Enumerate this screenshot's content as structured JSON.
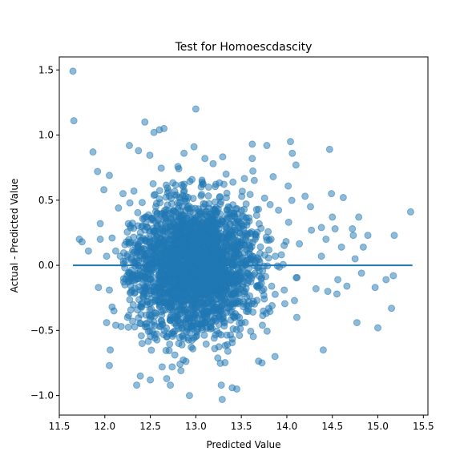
{
  "chart_data": {
    "type": "scatter",
    "title": "Test for Homoescdascity",
    "xlabel": "Predicted Value",
    "ylabel": "Actual - Predicted Value",
    "xlim": [
      11.5,
      15.55
    ],
    "ylim": [
      -1.15,
      1.6
    ],
    "x_ticks": [
      "11.5",
      "12.0",
      "12.5",
      "13.0",
      "13.5",
      "14.0",
      "14.5",
      "15.0",
      "15.5"
    ],
    "y_ticks": [
      "−1.0",
      "−0.5",
      "0.0",
      "0.5",
      "1.0",
      "1.5"
    ],
    "grid": false,
    "legend": "none",
    "point_color": "#1f77b4",
    "point_alpha": 0.5,
    "series": [
      {
        "kind": "scatter",
        "points": [
          [
            11.65,
            1.49
          ],
          [
            11.66,
            1.11
          ],
          [
            11.72,
            0.2
          ],
          [
            11.75,
            0.18
          ],
          [
            11.82,
            0.11
          ],
          [
            11.87,
            0.87
          ],
          [
            11.92,
            0.72
          ],
          [
            11.93,
            -0.17
          ],
          [
            11.95,
            0.32
          ],
          [
            11.95,
            0.2
          ],
          [
            11.99,
            0.58
          ],
          [
            12.02,
            0.07
          ],
          [
            12.05,
            0.69
          ],
          [
            12.05,
            -0.19
          ],
          [
            12.08,
            0.21
          ],
          [
            12.02,
            -0.44
          ],
          [
            12.06,
            -0.65
          ],
          [
            12.05,
            -0.77
          ],
          [
            12.08,
            -0.32
          ],
          [
            12.1,
            -0.35
          ],
          [
            12.12,
            -0.46
          ],
          [
            12.12,
            0.11
          ],
          [
            12.15,
            0.44
          ],
          [
            12.17,
            0.07
          ],
          [
            12.18,
            -0.47
          ],
          [
            12.2,
            0.55
          ],
          [
            12.22,
            -0.15
          ],
          [
            12.25,
            -0.4
          ],
          [
            12.27,
            0.92
          ],
          [
            12.32,
            0.57
          ],
          [
            12.35,
            -0.92
          ],
          [
            12.37,
            0.88
          ],
          [
            12.39,
            -0.85
          ],
          [
            12.41,
            -0.6
          ],
          [
            12.44,
            1.1
          ],
          [
            12.5,
            -0.88
          ],
          [
            12.54,
            1.02
          ],
          [
            12.6,
            1.04
          ],
          [
            12.63,
            -0.78
          ],
          [
            12.65,
            1.05
          ],
          [
            12.68,
            -0.87
          ],
          [
            12.72,
            -0.92
          ],
          [
            12.74,
            -0.78
          ],
          [
            12.87,
            0.86
          ],
          [
            12.93,
            -1.0
          ],
          [
            12.98,
            0.91
          ],
          [
            13.0,
            1.2
          ],
          [
            13.1,
            0.82
          ],
          [
            13.19,
            0.78
          ],
          [
            13.28,
            -0.92
          ],
          [
            13.29,
            -1.03
          ],
          [
            13.4,
            -0.94
          ],
          [
            13.45,
            -0.95
          ],
          [
            13.62,
            0.93
          ],
          [
            13.62,
            0.82
          ],
          [
            13.78,
            0.92
          ],
          [
            13.85,
            0.68
          ],
          [
            13.87,
            -0.7
          ],
          [
            14.04,
            0.95
          ],
          [
            14.06,
            0.86
          ],
          [
            14.1,
            0.77
          ],
          [
            14.11,
            -0.4
          ],
          [
            14.2,
            0.53
          ],
          [
            14.26,
            0.45
          ],
          [
            14.27,
            0.27
          ],
          [
            14.32,
            -0.18
          ],
          [
            14.38,
            0.29
          ],
          [
            14.43,
            0.2
          ],
          [
            14.38,
            0.07
          ],
          [
            14.45,
            -0.2
          ],
          [
            14.47,
            0.89
          ],
          [
            14.49,
            0.55
          ],
          [
            14.5,
            0.37
          ],
          [
            14.53,
            0.28
          ],
          [
            14.55,
            -0.22
          ],
          [
            14.56,
            -0.11
          ],
          [
            14.6,
            0.14
          ],
          [
            14.62,
            0.52
          ],
          [
            14.66,
            -0.16
          ],
          [
            14.72,
            0.28
          ],
          [
            14.73,
            0.23
          ],
          [
            14.75,
            0.05
          ],
          [
            14.77,
            -0.44
          ],
          [
            14.79,
            0.37
          ],
          [
            14.82,
            -0.06
          ],
          [
            14.84,
            0.14
          ],
          [
            14.89,
            0.23
          ],
          [
            14.97,
            -0.17
          ],
          [
            15.0,
            -0.48
          ],
          [
            15.09,
            -0.11
          ],
          [
            15.15,
            -0.33
          ],
          [
            15.18,
            0.23
          ],
          [
            15.17,
            -0.08
          ],
          [
            15.36,
            0.41
          ],
          [
            14.4,
            -0.65
          ]
        ],
        "dense_cluster": {
          "description_source": "bulk of residuals",
          "x_mean": 13.0,
          "x_sd": 0.35,
          "y_sd": 0.26,
          "count": 2600
        }
      },
      {
        "kind": "line",
        "points": [
          [
            11.65,
            0.0
          ],
          [
            15.38,
            0.0
          ]
        ],
        "color": "#1f77b4",
        "width": 2
      }
    ]
  }
}
